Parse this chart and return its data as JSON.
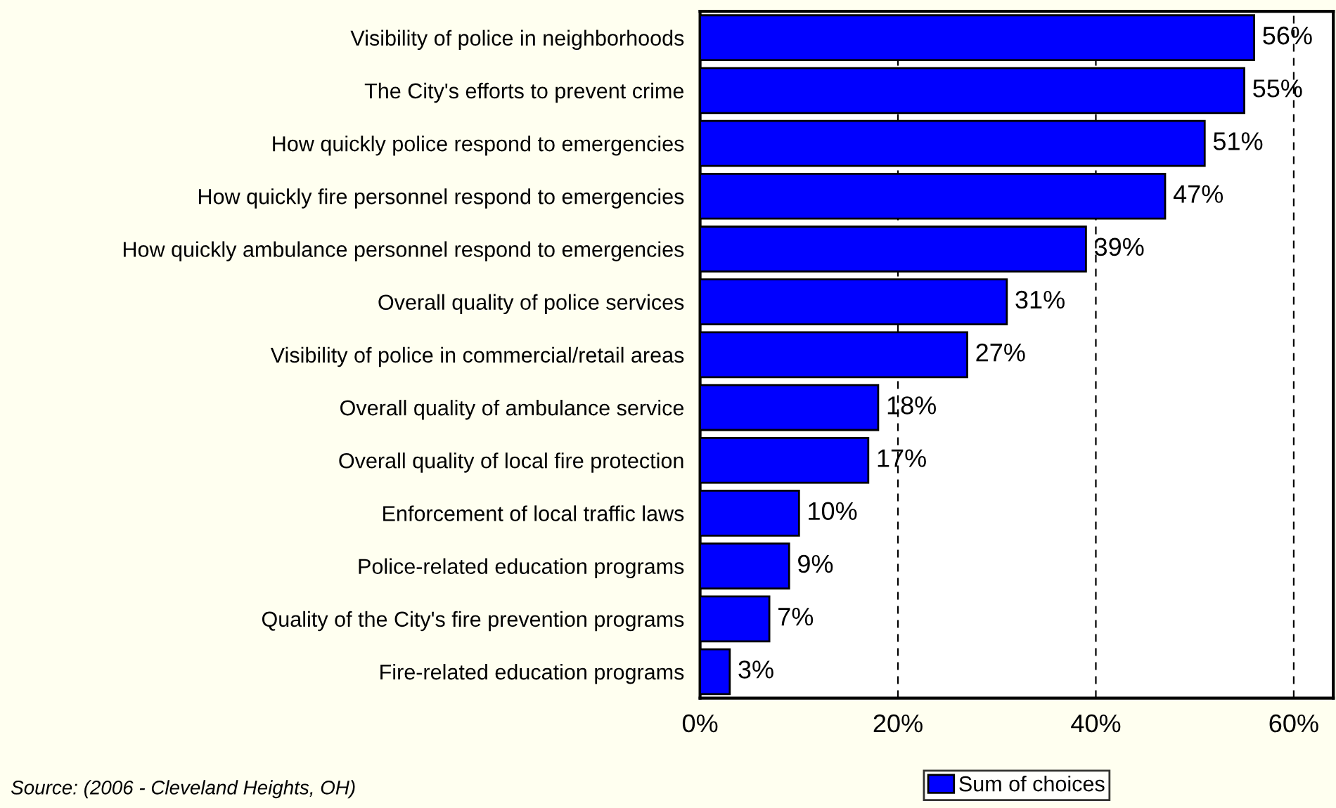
{
  "chart_data": {
    "type": "bar",
    "orientation": "horizontal",
    "categories": [
      "Visibility of police in neighborhoods",
      "The City's efforts to prevent crime",
      "How quickly police respond to emergencies",
      "How quickly fire personnel respond to emergencies",
      "How quickly ambulance personnel respond to emergencies",
      "Overall quality of police services",
      "Visibility of police in commercial/retail areas",
      "Overall quality of ambulance service",
      "Overall quality of local fire protection",
      "Enforcement of local traffic laws",
      "Police-related education programs",
      "Quality of the City's fire prevention programs",
      "Fire-related education programs"
    ],
    "series": [
      {
        "name": "Sum of choices",
        "color": "#0000ff",
        "values": [
          56,
          55,
          51,
          47,
          39,
          31,
          27,
          18,
          17,
          10,
          9,
          7,
          3
        ],
        "value_labels": [
          "56%",
          "55%",
          "51%",
          "47%",
          "39%",
          "31%",
          "27%",
          "18%",
          "17%",
          "10%",
          "9%",
          "7%",
          "3%"
        ]
      }
    ],
    "xlim": [
      0,
      64
    ],
    "xticks": [
      {
        "value": 0,
        "label": "0%"
      },
      {
        "value": 20,
        "label": "20%"
      },
      {
        "value": 40,
        "label": "40%"
      },
      {
        "value": 60,
        "label": "60%"
      }
    ],
    "grid": "x",
    "line_style": "dashed",
    "legend": "bottom",
    "annotations": [
      "Source: (2006 - Cleveland Heights, OH)"
    ]
  }
}
